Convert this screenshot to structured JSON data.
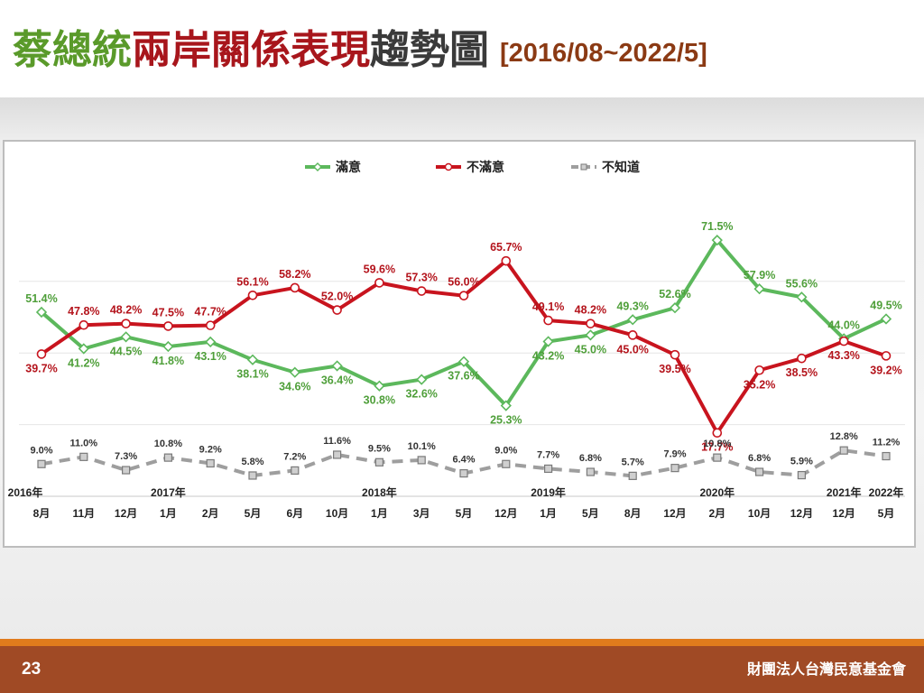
{
  "slide": {
    "title_part1": "蔡總統",
    "title_part2": "兩岸關係表現",
    "title_part3": "趨勢圖",
    "title_range": "[2016/08~2022/5]",
    "page_number": "23",
    "organization": "財團法人台灣民意基金會"
  },
  "colors": {
    "satisfied": "#5cb85c",
    "dissatisfied": "#c8141e",
    "unknown": "#9e9e9e"
  },
  "chart_data": {
    "type": "line",
    "title": "",
    "xlabel": "",
    "ylabel": "",
    "ylim": [
      0,
      80
    ],
    "grid": true,
    "legend_placement": "top-center",
    "years": [
      "2016年",
      "",
      "",
      "2017年",
      "",
      "",
      "",
      "",
      "2018年",
      "",
      "",
      "",
      "2019年",
      "",
      "",
      "",
      "2020年",
      "",
      "",
      "2021年",
      "2022年"
    ],
    "categories": [
      "8月",
      "11月",
      "12月",
      "1月",
      "2月",
      "5月",
      "6月",
      "10月",
      "1月",
      "3月",
      "5月",
      "12月",
      "1月",
      "5月",
      "8月",
      "12月",
      "2月",
      "10月",
      "12月",
      "12月",
      "5月"
    ],
    "series": [
      {
        "name": "滿意",
        "values": [
          51.4,
          41.2,
          44.5,
          41.8,
          43.1,
          38.1,
          34.6,
          36.4,
          30.8,
          32.6,
          37.6,
          25.3,
          43.2,
          45.0,
          49.3,
          52.6,
          71.5,
          57.9,
          55.6,
          44.0,
          49.5
        ]
      },
      {
        "name": "不滿意",
        "values": [
          39.7,
          47.8,
          48.2,
          47.5,
          47.7,
          56.1,
          58.2,
          52.0,
          59.6,
          57.3,
          56.0,
          65.7,
          49.1,
          48.2,
          45.0,
          39.5,
          17.7,
          35.2,
          38.5,
          43.3,
          39.2
        ]
      },
      {
        "name": "不知道",
        "values": [
          9.0,
          11.0,
          7.3,
          10.8,
          9.2,
          5.8,
          7.2,
          11.6,
          9.5,
          10.1,
          6.4,
          9.0,
          7.7,
          6.8,
          5.7,
          7.9,
          10.8,
          6.8,
          5.9,
          12.8,
          11.2
        ]
      }
    ],
    "labels": [
      [
        "51.4%",
        "41.2%",
        "44.5%",
        "41.8%",
        "43.1%",
        "38.1%",
        "34.6%",
        "36.4%",
        "30.8%",
        "32.6%",
        "37.6%",
        "25.3%",
        "43.2%",
        "45.0%",
        "49.3%",
        "52.6%",
        "71.5%",
        "57.9%",
        "55.6%",
        "44.0%",
        "49.5%"
      ],
      [
        "39.7%",
        "47.8%",
        "48.2%",
        "47.5%",
        "47.7%",
        "56.1%",
        "58.2%",
        "52.0%",
        "59.6%",
        "57.3%",
        "56.0%",
        "65.7%",
        "49.1%",
        "48.2%",
        "45.0%",
        "39.5%",
        "17.7%",
        "35.2%",
        "38.5%",
        "43.3%",
        "39.2%"
      ],
      [
        "9.0%",
        "11.0%",
        "7.3%",
        "10.8%",
        "9.2%",
        "5.8%",
        "7.2%",
        "11.6%",
        "9.5%",
        "10.1%",
        "6.4%",
        "9.0%",
        "7.7%",
        "6.8%",
        "5.7%",
        "7.9%",
        "10.8%",
        "6.8%",
        "5.9%",
        "12.8%",
        "11.2%"
      ]
    ]
  }
}
